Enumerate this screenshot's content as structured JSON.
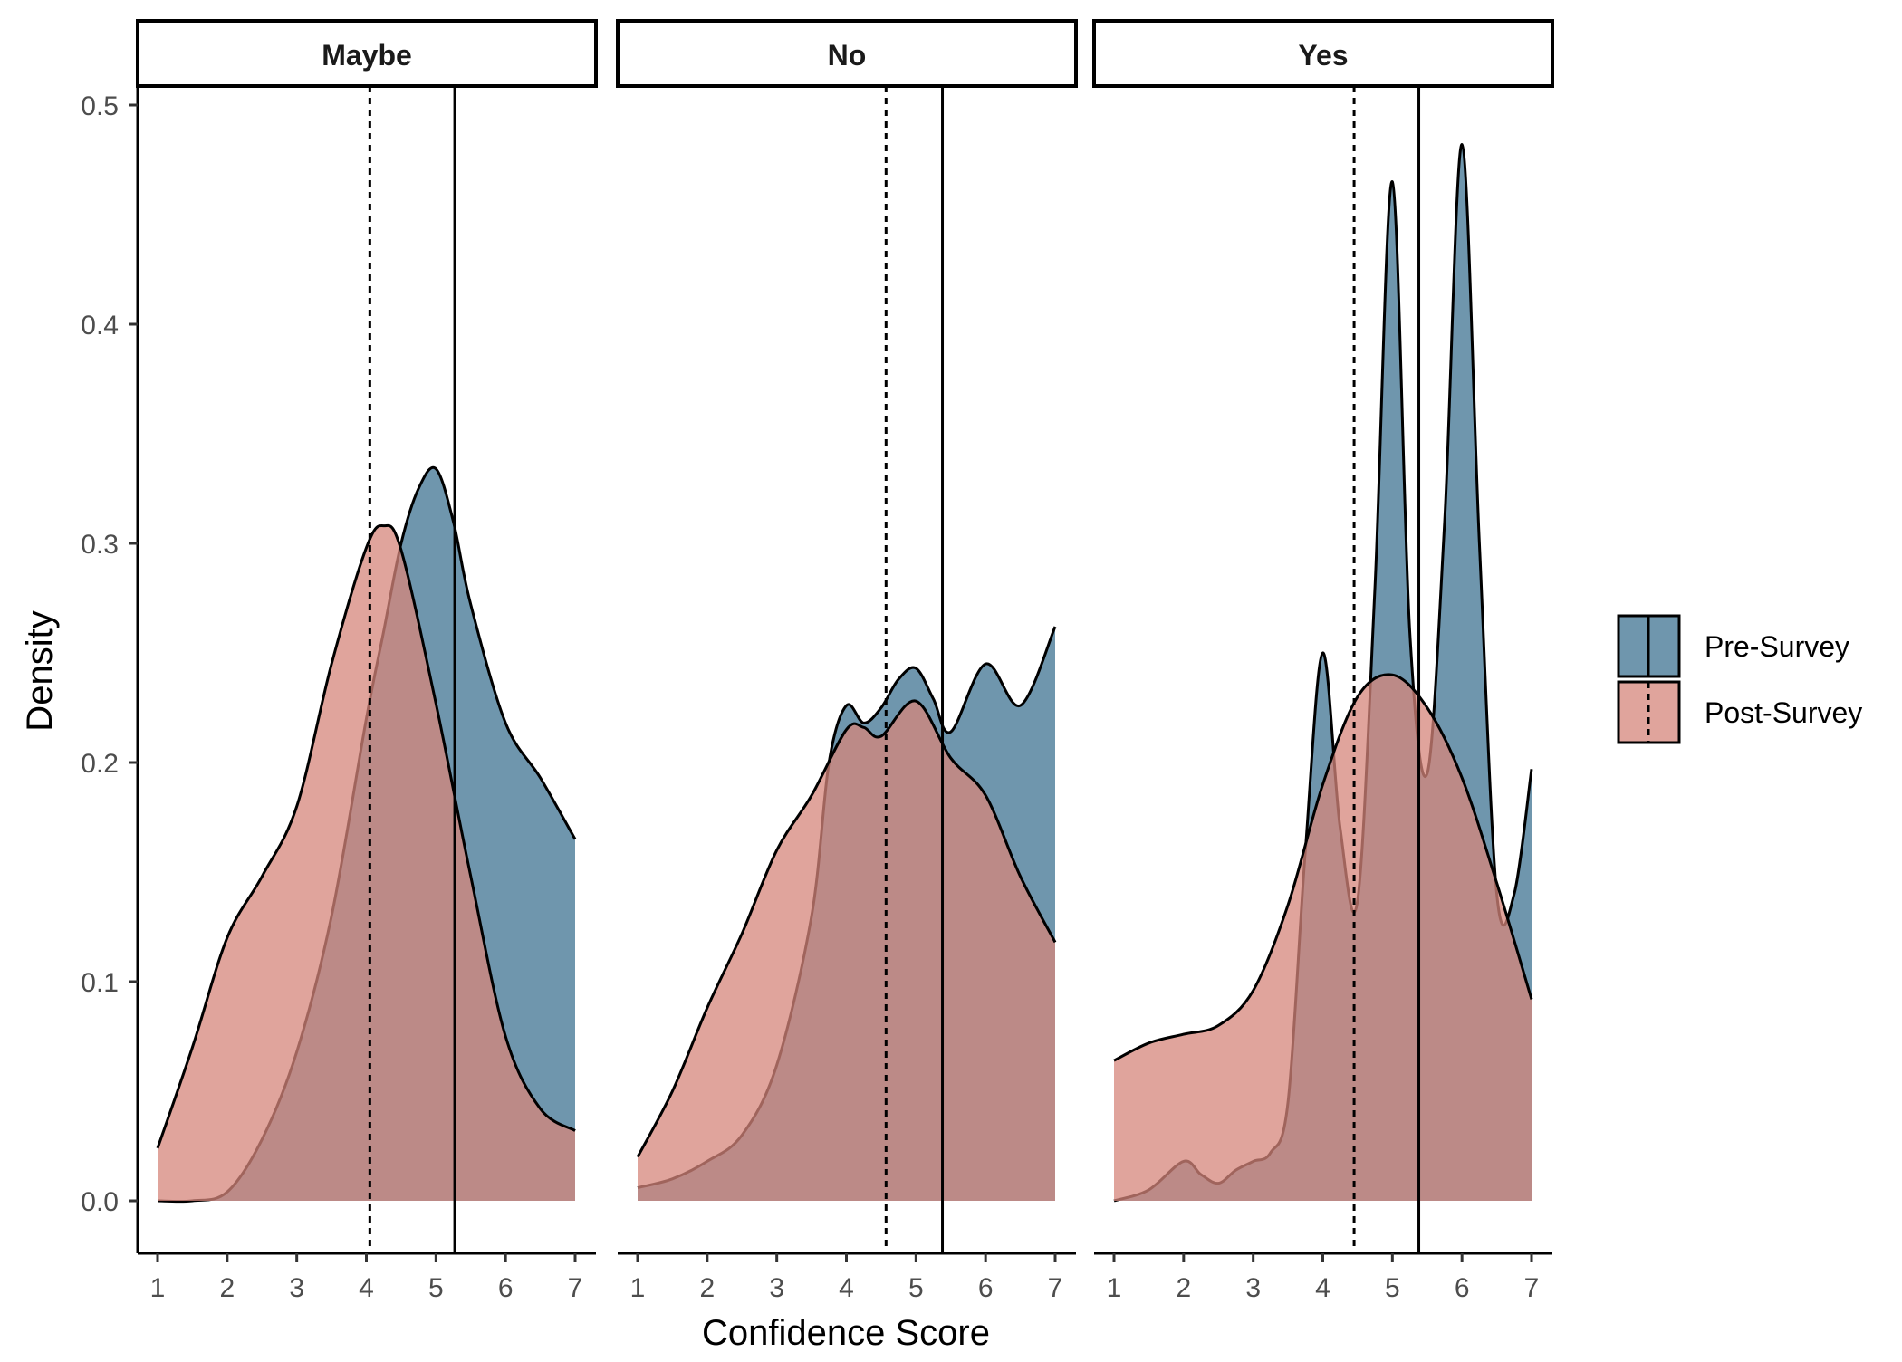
{
  "chart_data": {
    "type": "area",
    "xlabel": "Confidence Score",
    "ylabel": "Density",
    "xlim": [
      1,
      7
    ],
    "ylim": [
      0,
      0.5
    ],
    "x_ticks": [
      1,
      2,
      3,
      4,
      5,
      6,
      7
    ],
    "y_ticks": [
      0.0,
      0.1,
      0.2,
      0.3,
      0.4,
      0.5
    ],
    "y_tick_labels": [
      "0.0",
      "0.1",
      "0.2",
      "0.3",
      "0.4",
      "0.5"
    ],
    "grid": false,
    "legend_position": "right",
    "colors": {
      "Pre-Survey": "#3f7391",
      "Post-Survey": "#d6857b"
    },
    "series_names": [
      "Pre-Survey",
      "Post-Survey"
    ],
    "panels": [
      {
        "label": "Maybe",
        "mean_pre": 5.27,
        "mean_post": 4.05,
        "series": [
          {
            "name": "Pre-Survey",
            "x": [
              1,
              1.5,
              2,
              2.5,
              3,
              3.5,
              4,
              4.25,
              4.5,
              4.75,
              5,
              5.25,
              5.5,
              6,
              6.5,
              7
            ],
            "y": [
              0,
              0,
              0.004,
              0.028,
              0.068,
              0.13,
              0.22,
              0.26,
              0.3,
              0.325,
              0.334,
              0.31,
              0.272,
              0.218,
              0.193,
              0.165
            ]
          },
          {
            "name": "Post-Survey",
            "x": [
              1,
              1.5,
              2,
              2.5,
              3,
              3.5,
              4,
              4.25,
              4.5,
              5,
              5.5,
              6,
              6.5,
              7
            ],
            "y": [
              0.024,
              0.07,
              0.12,
              0.148,
              0.18,
              0.245,
              0.298,
              0.308,
              0.297,
              0.227,
              0.148,
              0.075,
              0.042,
              0.032
            ]
          }
        ]
      },
      {
        "label": "No",
        "mean_pre": 5.38,
        "mean_post": 4.57,
        "series": [
          {
            "name": "Pre-Survey",
            "x": [
              1,
              1.5,
              2,
              2.5,
              3,
              3.5,
              3.75,
              4,
              4.25,
              4.5,
              4.75,
              5,
              5.25,
              5.5,
              6,
              6.5,
              7
            ],
            "y": [
              0.006,
              0.01,
              0.018,
              0.03,
              0.062,
              0.13,
              0.2,
              0.226,
              0.218,
              0.225,
              0.238,
              0.243,
              0.229,
              0.214,
              0.245,
              0.226,
              0.262
            ]
          },
          {
            "name": "Post-Survey",
            "x": [
              1,
              1.5,
              2,
              2.5,
              3,
              3.5,
              4,
              4.25,
              4.5,
              5,
              5.5,
              6,
              6.5,
              7
            ],
            "y": [
              0.02,
              0.05,
              0.088,
              0.122,
              0.16,
              0.185,
              0.215,
              0.216,
              0.212,
              0.228,
              0.202,
              0.185,
              0.148,
              0.118
            ]
          }
        ]
      },
      {
        "label": "Yes",
        "mean_pre": 5.38,
        "mean_post": 4.45,
        "series": [
          {
            "name": "Pre-Survey",
            "x": [
              1,
              1.5,
              2,
              2.25,
              2.5,
              2.75,
              3,
              3.25,
              3.5,
              3.75,
              4,
              4.25,
              4.5,
              4.75,
              5,
              5.25,
              5.5,
              5.75,
              6,
              6.25,
              6.5,
              6.75,
              7
            ],
            "y": [
              0,
              0.005,
              0.018,
              0.012,
              0.008,
              0.014,
              0.018,
              0.022,
              0.045,
              0.16,
              0.25,
              0.17,
              0.137,
              0.28,
              0.465,
              0.26,
              0.195,
              0.31,
              0.482,
              0.3,
              0.14,
              0.14,
              0.197
            ]
          },
          {
            "name": "Post-Survey",
            "x": [
              1,
              1.5,
              2,
              2.5,
              3,
              3.5,
              4,
              4.5,
              5,
              5.5,
              6,
              6.5,
              7
            ],
            "y": [
              0.064,
              0.072,
              0.076,
              0.08,
              0.096,
              0.135,
              0.19,
              0.23,
              0.24,
              0.225,
              0.193,
              0.145,
              0.092
            ]
          }
        ]
      }
    ]
  }
}
